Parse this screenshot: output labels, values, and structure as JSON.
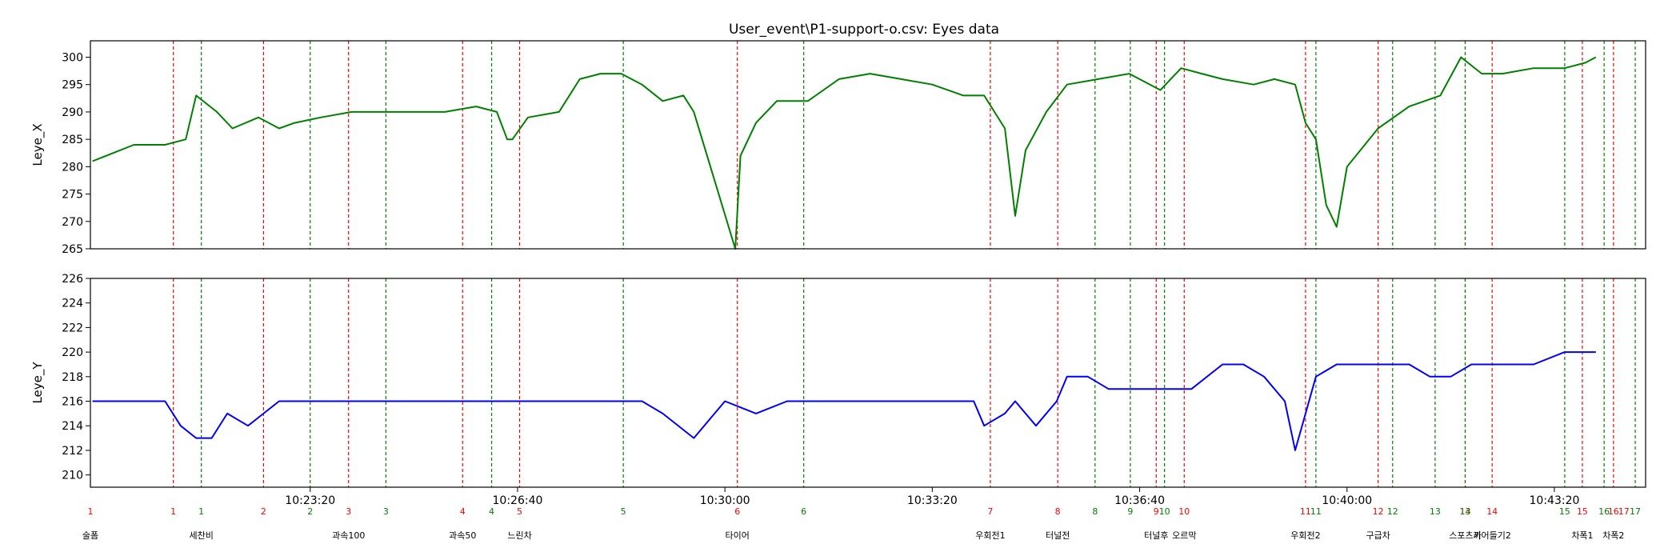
{
  "chart_data": [
    {
      "type": "line",
      "title": "User_event\\P1-support-o.csv: Eyes data",
      "ylabel": "Leye_X",
      "ylim": [
        265,
        303
      ],
      "yticks": [
        265,
        270,
        275,
        280,
        285,
        290,
        295,
        300
      ],
      "line_color": "#008000",
      "series": [
        {
          "x": [
            "10:19:50",
            "10:20:30",
            "10:21:00",
            "10:21:20",
            "10:21:30",
            "10:21:50",
            "10:22:05",
            "10:22:30",
            "10:22:50",
            "10:23:05",
            "10:23:30",
            "10:24:00",
            "10:24:30",
            "10:25:00",
            "10:25:30",
            "10:26:00",
            "10:26:20",
            "10:26:30",
            "10:26:35",
            "10:26:50",
            "10:27:20",
            "10:27:40",
            "10:28:00",
            "10:28:20",
            "10:28:40",
            "10:29:00",
            "10:29:20",
            "10:29:30",
            "10:30:10",
            "10:30:15",
            "10:30:30",
            "10:30:50",
            "10:31:20",
            "10:31:50",
            "10:32:20",
            "10:32:50",
            "10:33:20",
            "10:33:50",
            "10:34:10",
            "10:34:30",
            "10:34:40",
            "10:34:50",
            "10:35:10",
            "10:35:30",
            "10:36:00",
            "10:36:30",
            "10:37:00",
            "10:37:20",
            "10:37:40",
            "10:38:00",
            "10:38:30",
            "10:38:50",
            "10:39:10",
            "10:39:20",
            "10:39:30",
            "10:39:40",
            "10:39:50",
            "10:40:00",
            "10:40:30",
            "10:41:00",
            "10:41:30",
            "10:41:50",
            "10:42:10",
            "10:42:30",
            "10:43:00",
            "10:43:30",
            "10:43:50",
            "10:44:00"
          ],
          "values": [
            281,
            284,
            284,
            285,
            293,
            290,
            287,
            289,
            287,
            288,
            289,
            290,
            290,
            290,
            290,
            291,
            290,
            285,
            285,
            289,
            290,
            296,
            297,
            297,
            295,
            292,
            293,
            290,
            265,
            282,
            288,
            292,
            292,
            296,
            297,
            296,
            295,
            293,
            293,
            287,
            271,
            283,
            290,
            295,
            296,
            297,
            294,
            298,
            297,
            296,
            295,
            296,
            295,
            288,
            285,
            273,
            269,
            280,
            287,
            291,
            293,
            300,
            297,
            297,
            298,
            298,
            299,
            300
          ]
        }
      ]
    },
    {
      "type": "line",
      "ylabel": "Leye_Y",
      "ylim": [
        209,
        226
      ],
      "yticks": [
        210,
        212,
        214,
        216,
        218,
        220,
        222,
        224,
        226
      ],
      "line_color": "#0000ff",
      "series": [
        {
          "x": [
            "10:19:50",
            "10:20:30",
            "10:21:00",
            "10:21:15",
            "10:21:30",
            "10:21:45",
            "10:22:00",
            "10:22:20",
            "10:22:35",
            "10:22:50",
            "10:23:20",
            "10:24:00",
            "10:24:30",
            "10:25:00",
            "10:25:30",
            "10:26:00",
            "10:26:30",
            "10:27:00",
            "10:28:00",
            "10:28:40",
            "10:29:00",
            "10:29:30",
            "10:30:00",
            "10:30:30",
            "10:31:00",
            "10:31:30",
            "10:32:00",
            "10:32:30",
            "10:33:00",
            "10:33:30",
            "10:34:00",
            "10:34:10",
            "10:34:30",
            "10:34:40",
            "10:34:50",
            "10:35:00",
            "10:35:20",
            "10:35:30",
            "10:35:50",
            "10:36:10",
            "10:36:30",
            "10:37:00",
            "10:37:30",
            "10:38:00",
            "10:38:20",
            "10:38:40",
            "10:39:00",
            "10:39:10",
            "10:39:30",
            "10:39:50",
            "10:40:00",
            "10:40:30",
            "10:41:00",
            "10:41:20",
            "10:41:40",
            "10:42:00",
            "10:42:20",
            "10:42:40",
            "10:43:00",
            "10:43:30",
            "10:44:00"
          ],
          "values": [
            216,
            216,
            216,
            214,
            213,
            213,
            215,
            214,
            215,
            216,
            216,
            216,
            216,
            216,
            216,
            216,
            216,
            216,
            216,
            216,
            215,
            213,
            216,
            215,
            216,
            216,
            216,
            216,
            216,
            216,
            216,
            214,
            215,
            216,
            215,
            214,
            216,
            218,
            218,
            217,
            217,
            217,
            217,
            219,
            219,
            218,
            216,
            212,
            218,
            219,
            219,
            219,
            219,
            218,
            218,
            219,
            219,
            219,
            219,
            220,
            220
          ]
        }
      ]
    }
  ],
  "time_ticks": [
    {
      "label": "10:23:20",
      "t": "10:23:20"
    },
    {
      "label": "10:26:40",
      "t": "10:26:40"
    },
    {
      "label": "10:30:00",
      "t": "10:30:00"
    },
    {
      "label": "10:33:20",
      "t": "10:33:20"
    },
    {
      "label": "10:36:40",
      "t": "10:36:40"
    },
    {
      "label": "10:40:00",
      "t": "10:40:00"
    },
    {
      "label": "10:43:20",
      "t": "10:43:20"
    }
  ],
  "event_markers": [
    {
      "num": "1",
      "kind": "start",
      "t": "10:21:08"
    },
    {
      "num": "2",
      "kind": "start",
      "t": "10:22:35"
    },
    {
      "num": "3",
      "kind": "start",
      "t": "10:23:57"
    },
    {
      "num": "4",
      "kind": "start",
      "t": "10:25:47"
    },
    {
      "num": "5",
      "kind": "start",
      "t": "10:26:42"
    },
    {
      "num": "6",
      "kind": "start",
      "t": "10:30:12"
    },
    {
      "num": "7",
      "kind": "start",
      "t": "10:34:16"
    },
    {
      "num": "8",
      "kind": "start",
      "t": "10:35:21"
    },
    {
      "num": "9",
      "kind": "start",
      "t": "10:36:56"
    },
    {
      "num": "10",
      "kind": "start",
      "t": "10:37:23"
    },
    {
      "num": "11",
      "kind": "start",
      "t": "10:39:20"
    },
    {
      "num": "12",
      "kind": "start",
      "t": "10:40:30"
    },
    {
      "num": "13",
      "kind": "start",
      "t": "10:41:54"
    },
    {
      "num": "14",
      "kind": "start",
      "t": "10:42:20"
    },
    {
      "num": "15",
      "kind": "start",
      "t": "10:43:47"
    },
    {
      "num": "16",
      "kind": "start",
      "t": "10:44:17"
    },
    {
      "num": "1",
      "kind": "end",
      "t": "10:21:35"
    },
    {
      "num": "2",
      "kind": "end",
      "t": "10:23:20"
    },
    {
      "num": "3",
      "kind": "end",
      "t": "10:24:33"
    },
    {
      "num": "4",
      "kind": "end",
      "t": "10:26:15"
    },
    {
      "num": "5",
      "kind": "end",
      "t": "10:28:22"
    },
    {
      "num": "6",
      "kind": "end",
      "t": "10:31:16"
    },
    {
      "num": "8",
      "kind": "end",
      "t": "10:35:57"
    },
    {
      "num": "9",
      "kind": "end",
      "t": "10:36:31"
    },
    {
      "num": "10",
      "kind": "end",
      "t": "10:37:04"
    },
    {
      "num": "11",
      "kind": "end",
      "t": "10:39:30"
    },
    {
      "num": "12",
      "kind": "end",
      "t": "10:40:44"
    },
    {
      "num": "13",
      "kind": "end",
      "t": "10:41:25"
    },
    {
      "num": "14",
      "kind": "end",
      "t": "10:41:54"
    },
    {
      "num": "15",
      "kind": "end",
      "t": "10:43:30"
    },
    {
      "num": "16",
      "kind": "end",
      "t": "10:44:08"
    },
    {
      "num": "17",
      "kind": "end",
      "t": "10:44:38"
    }
  ],
  "extra_event_labels": [
    {
      "num": "1",
      "kind": "start",
      "t": "10:19:48"
    },
    {
      "num": "17",
      "kind": "start",
      "t": "10:44:27"
    }
  ],
  "event_names": [
    {
      "name": "술폼",
      "t": "10:19:48"
    },
    {
      "name": "세찬비",
      "t": "10:21:35"
    },
    {
      "name": "과속100",
      "t": "10:23:57"
    },
    {
      "name": "과속50",
      "t": "10:25:47"
    },
    {
      "name": "느린차",
      "t": "10:26:42"
    },
    {
      "name": "타이어",
      "t": "10:30:12"
    },
    {
      "name": "우회전1",
      "t": "10:34:16"
    },
    {
      "name": "터널전",
      "t": "10:35:21"
    },
    {
      "name": "터널후",
      "t": "10:36:56"
    },
    {
      "name": "오르막",
      "t": "10:37:23"
    },
    {
      "name": "우회전2",
      "t": "10:39:20"
    },
    {
      "name": "구급차",
      "t": "10:40:30"
    },
    {
      "name": "스포츠카",
      "t": "10:41:54"
    },
    {
      "name": "끼어들기2",
      "t": "10:42:20"
    },
    {
      "name": "차폭1",
      "t": "10:43:47"
    },
    {
      "name": "차폭2",
      "t": "10:44:17"
    }
  ],
  "colors": {
    "start": "#ff0000",
    "end": "#008000",
    "axis": "#000000"
  }
}
